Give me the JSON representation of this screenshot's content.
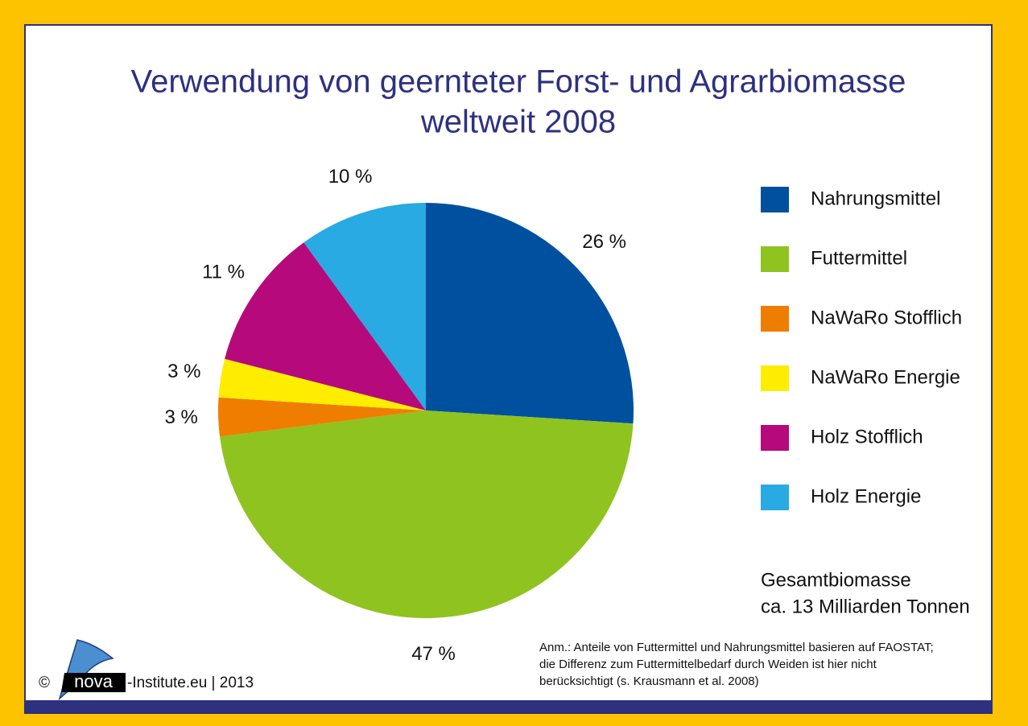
{
  "chart_data": {
    "type": "pie",
    "title": [
      "Verwendung von geernteter Forst- und Agrarbiomasse",
      "weltweit 2008"
    ],
    "categories": [
      "Nahrungsmittel",
      "Futtermittel",
      "NaWaRo Stofflich",
      "NaWaRo Energie",
      "Holz Stofflich",
      "Holz Energie"
    ],
    "values": [
      26,
      47,
      3,
      3,
      11,
      10
    ],
    "value_labels": [
      "26 %",
      "47 %",
      "3 %",
      "3 %",
      "11 %",
      "10 %"
    ],
    "colors": [
      "#0050a0",
      "#8fc31f",
      "#ef7d00",
      "#ffed00",
      "#b5097c",
      "#29aae2"
    ],
    "legend": "right",
    "annotations": {
      "total": [
        "Gesamtbiomasse",
        "ca. 13 Milliarden Tonnen"
      ],
      "note": [
        "Anm.: Anteile von Futtermittel und Nahrungsmittel basieren auf FAOSTAT;",
        "die Differenz zum Futtermittelbedarf durch Weiden ist hier nicht",
        "berücksichtigt (s. Krausmann et al. 2008)"
      ]
    },
    "footer": {
      "copyright": "©",
      "logo": "nova",
      "text": "-Institute.eu | 2013"
    }
  }
}
